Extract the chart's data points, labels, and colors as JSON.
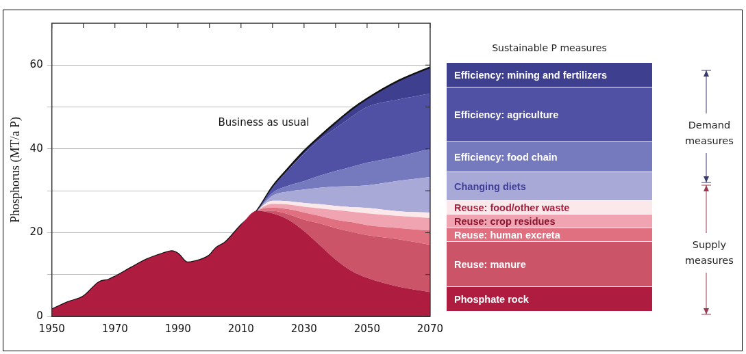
{
  "chart_data": {
    "type": "area",
    "stacked": true,
    "legend_title": "Sustainable P measures",
    "legend": "right",
    "ylabel": "Phosphorus (MT/a P)",
    "xlim": [
      1950,
      2070
    ],
    "xticks": [
      1950,
      {
        "value": 1960,
        "label": null
      },
      1970,
      {
        "value": 1980,
        "label": null
      },
      1990,
      {
        "value": 2000,
        "label": null
      },
      2010,
      {
        "value": 2020,
        "label": null
      },
      2030,
      {
        "value": 2040,
        "label": null
      },
      2050,
      {
        "value": 2060,
        "label": null
      },
      2070
    ],
    "ylim": [
      0,
      70
    ],
    "yticks": [
      0,
      {
        "value": 10,
        "label": null
      },
      20,
      {
        "value": 30,
        "label": null
      },
      40,
      {
        "value": 50,
        "label": null
      },
      60
    ],
    "grid": "y",
    "x": [
      1950,
      1955,
      1960,
      1965,
      1968,
      1970,
      1975,
      1980,
      1985,
      1988,
      1990,
      1993,
      1995,
      2000,
      2002,
      2005,
      2010,
      2015,
      2020,
      2025,
      2030,
      2035,
      2040,
      2045,
      2050,
      2060,
      2070
    ],
    "series": [
      {
        "name": "Phosphate rock",
        "color": "#ae1c40",
        "values": [
          1.7,
          3.4,
          4.8,
          8.2,
          8.8,
          9.5,
          11.6,
          13.6,
          15,
          15.6,
          15,
          12.9,
          13.1,
          14.6,
          16.3,
          17.7,
          21.8,
          25.2,
          24.6,
          23.1,
          20.4,
          17,
          13.6,
          10.9,
          9.2,
          7.1,
          5.8
        ]
      },
      {
        "name": "Reuse: manure",
        "color": "#cc5468",
        "values": [
          0,
          0,
          0,
          0,
          0,
          0,
          0,
          0,
          0,
          0,
          0,
          0,
          0,
          0,
          0,
          0,
          0,
          0,
          0.6,
          1.3,
          2.7,
          5.2,
          7.5,
          9.3,
          10.2,
          11.3,
          11.3
        ]
      },
      {
        "name": "Reuse: human excreta",
        "color": "#e0707f",
        "values": [
          0,
          0,
          0,
          0,
          0,
          0,
          0,
          0,
          0,
          0,
          0,
          0,
          0,
          0,
          0,
          0,
          0,
          0,
          0.8,
          1.2,
          1.7,
          1.8,
          2,
          2.3,
          2.4,
          2.7,
          3.4
        ]
      },
      {
        "name": "Reuse: crop residues",
        "color": "#f0a3b0",
        "values": [
          0,
          0,
          0,
          0,
          0,
          0,
          0,
          0,
          0,
          0,
          0,
          0,
          0,
          0,
          0,
          0,
          0,
          0,
          0.9,
          1.1,
          1.4,
          1.8,
          2.3,
          2.5,
          2.8,
          2.9,
          3
        ]
      },
      {
        "name": "Reuse: food/other waste",
        "color": "#fbe8ea",
        "values": [
          0,
          0,
          0,
          0,
          0,
          0,
          0,
          0,
          0,
          0,
          0,
          0,
          0,
          0,
          0,
          0,
          0,
          0,
          0.7,
          0.8,
          0.9,
          1,
          1,
          1.1,
          1.3,
          1.1,
          1.3
        ]
      },
      {
        "name": "Changing diets",
        "color": "#a9a9d8",
        "values": [
          0,
          0,
          0,
          0,
          0,
          0,
          0,
          0,
          0,
          0,
          0,
          0,
          0,
          0,
          0,
          0,
          0,
          0,
          1.2,
          2.3,
          3.2,
          3.9,
          4.6,
          5,
          5.4,
          7.3,
          8.5
        ]
      },
      {
        "name": "Efficiency: food chain",
        "color": "#7579bd",
        "values": [
          0,
          0,
          0,
          0,
          0,
          0,
          0,
          0,
          0,
          0,
          0,
          0,
          0,
          0,
          0,
          0,
          0,
          0,
          0.7,
          1.4,
          2,
          2.9,
          3.7,
          4.6,
          5.4,
          5.8,
          6.7
        ]
      },
      {
        "name": "Efficiency: agriculture",
        "color": "#5050a5",
        "values": [
          0,
          0,
          0,
          0,
          0,
          0,
          0,
          0,
          0,
          0,
          0,
          0,
          0,
          0,
          0,
          0,
          0,
          0,
          1.3,
          3.8,
          6.5,
          8.6,
          10.2,
          11.9,
          13.3,
          13.6,
          13.2
        ]
      },
      {
        "name": "Efficiency: mining and fertilizers",
        "color": "#3f3f8f",
        "values": [
          0,
          0,
          0,
          0,
          0,
          0,
          0,
          0,
          0,
          0,
          0,
          0,
          0,
          0,
          0,
          0,
          0,
          0,
          0.2,
          0.4,
          0.7,
          0.8,
          1.4,
          1.8,
          2,
          4.5,
          6.3
        ]
      }
    ],
    "annotations": [
      "Business as usual",
      "Demand measures",
      "Supply measures"
    ]
  }
}
